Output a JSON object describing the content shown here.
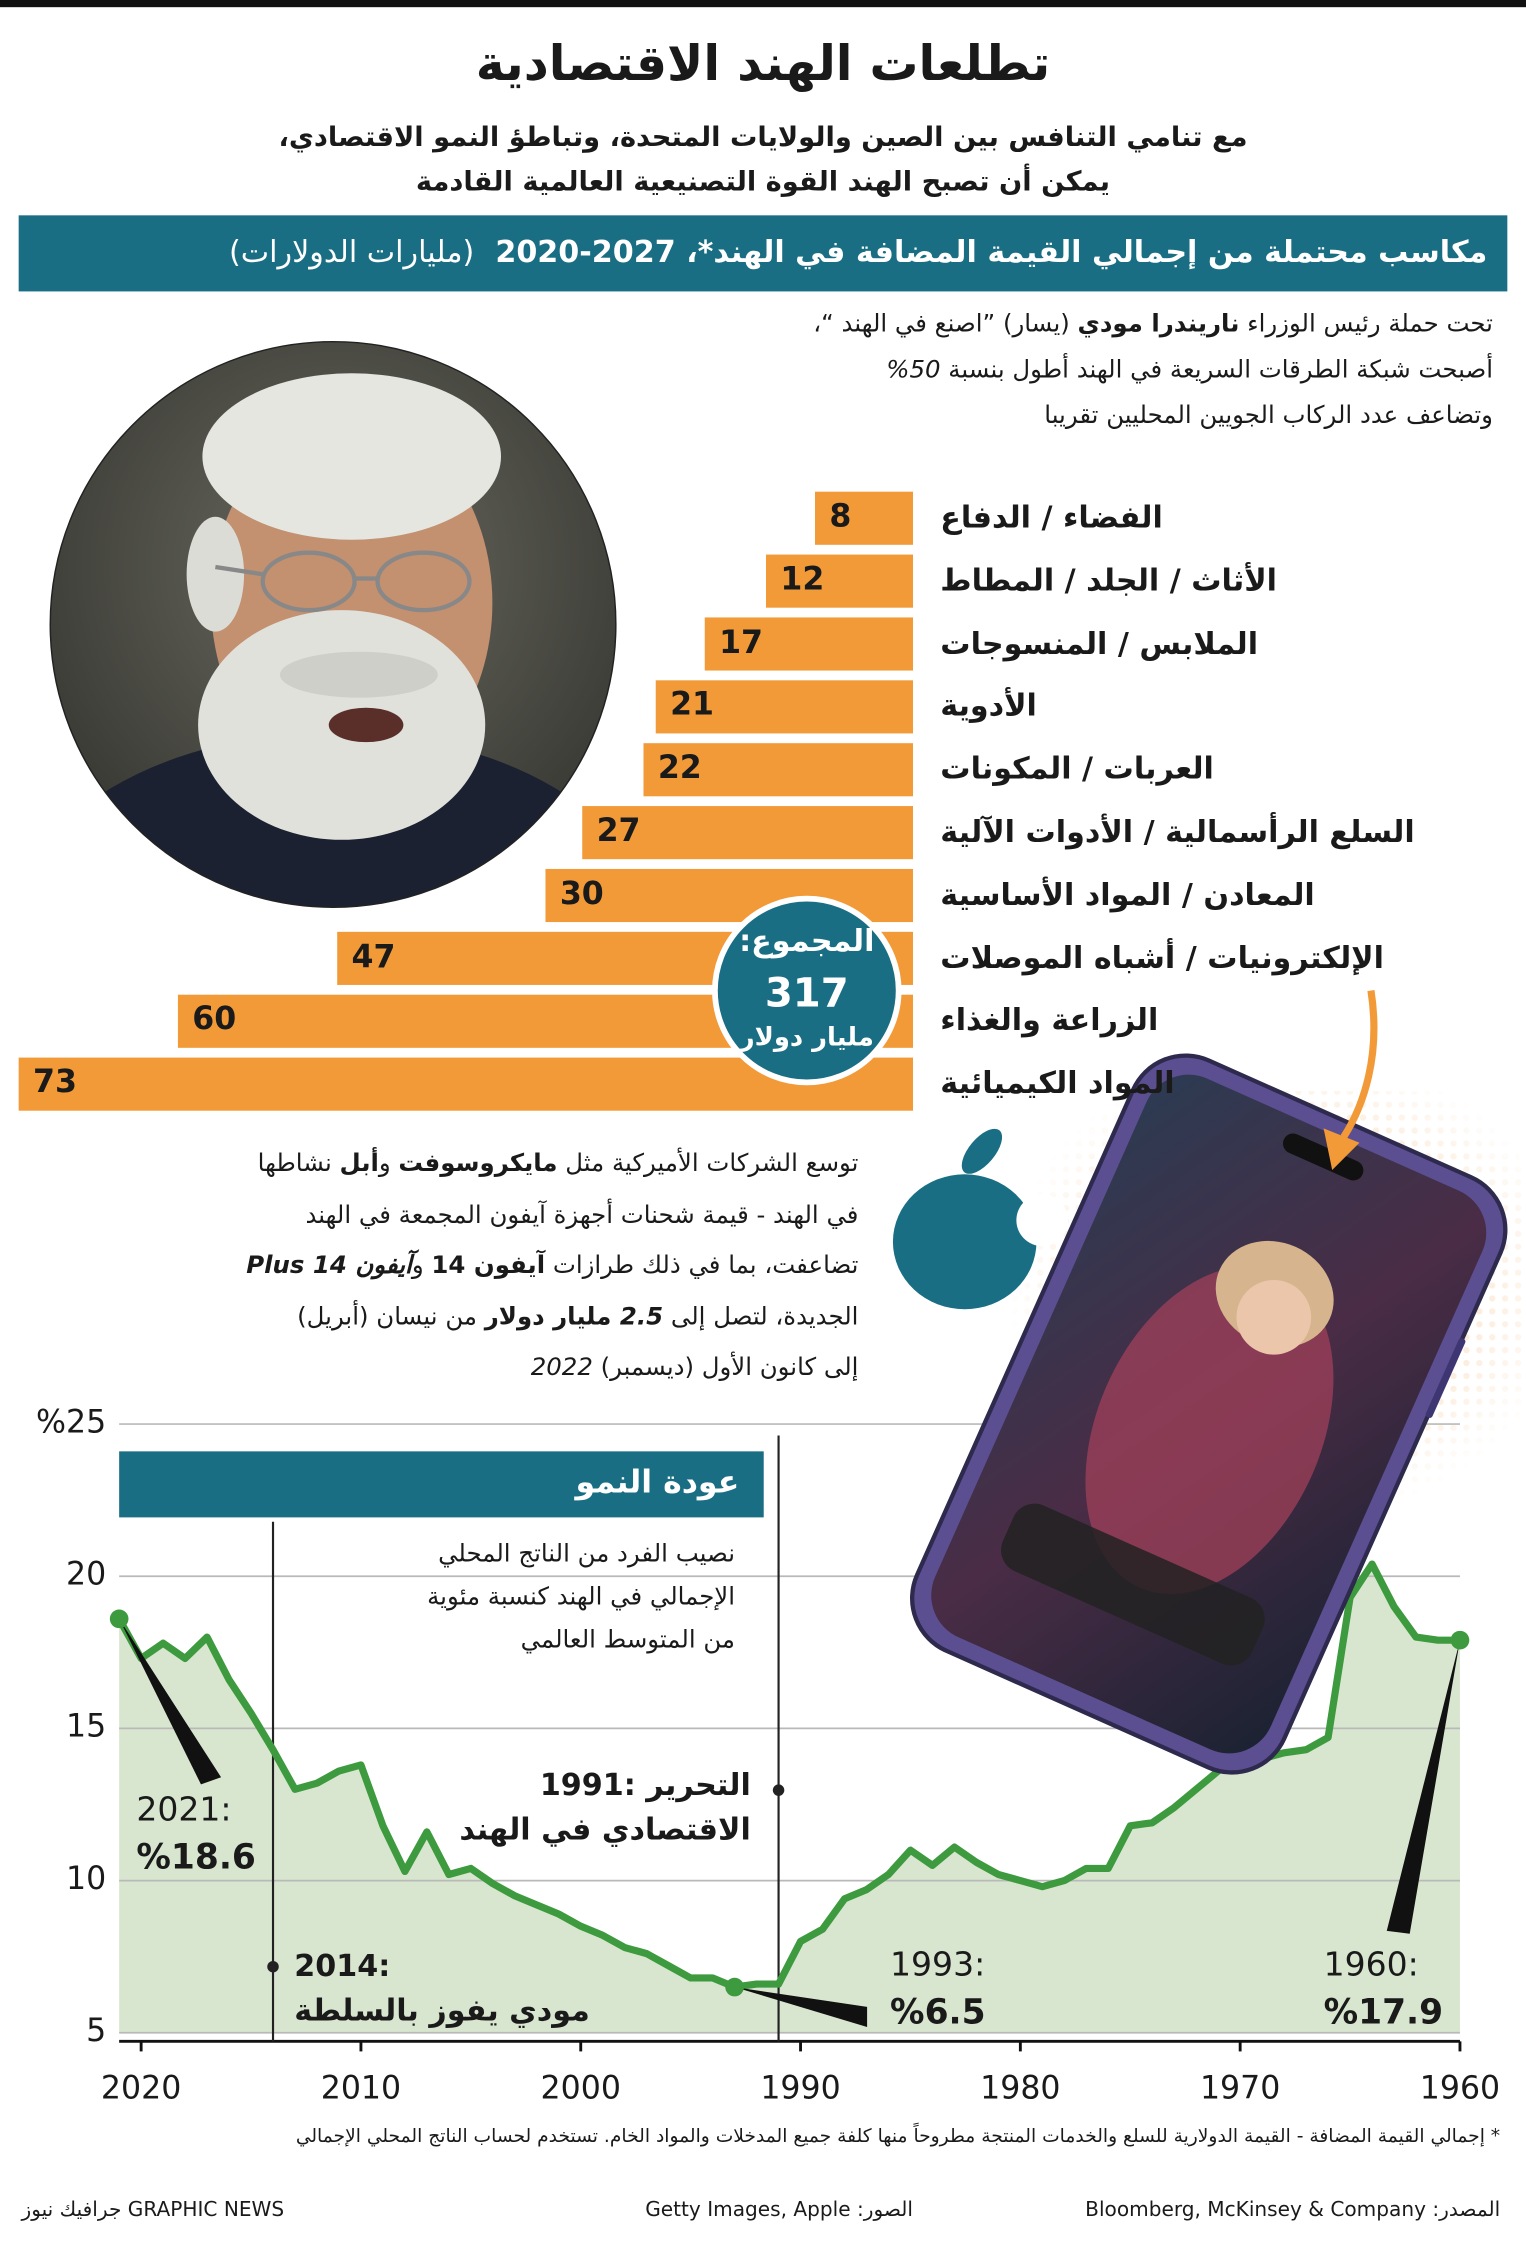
{
  "header": {
    "title": "تطلعات الهند الاقتصادية",
    "subtitle": [
      "مع تنامي التنافس بين الصين والولايات المتحدة، وتباطؤ النمو الاقتصادي،",
      "يمكن أن تصبح الهند القوة التصنيعية العالمية القادمة"
    ]
  },
  "chart_data": [
    {
      "type": "bar",
      "title": "مكاسب محتملة من إجمالي القيمة المضافة في الهند*، 2027-2020",
      "unit": "(مليارات الدولارات)",
      "categories": [
        "الفضاء / الدفاع",
        "الأثاث / الجلد / المطاط",
        "الملابس / المنسوجات",
        "الأدوية",
        "العربات / المكونات",
        "السلع الرأسمالية / الأدوات الآلية",
        "المعادن / المواد الأساسية",
        "الإلكترونيات / أشباه الموصلات",
        "الزراعة والغذاء",
        "المواد الكيميائية"
      ],
      "values": [
        8,
        12,
        17,
        21,
        22,
        27,
        30,
        47,
        60,
        73
      ],
      "color": "#f29a38",
      "total": {
        "label": "المجموع:",
        "value": 317,
        "unit": "مليار دولار"
      }
    },
    {
      "type": "line",
      "title": "عودة النمو",
      "description": [
        "نصيب الفرد من الناتج المحلي",
        "الإجمالي في الهند كنسبة مئوية",
        "من المتوسط العالمي"
      ],
      "x": [
        1960,
        1961,
        1962,
        1963,
        1964,
        1965,
        1966,
        1967,
        1968,
        1969,
        1970,
        1971,
        1972,
        1973,
        1974,
        1975,
        1976,
        1977,
        1978,
        1979,
        1980,
        1981,
        1982,
        1983,
        1984,
        1985,
        1986,
        1987,
        1988,
        1989,
        1990,
        1991,
        1992,
        1993,
        1994,
        1995,
        1996,
        1997,
        1998,
        1999,
        2000,
        2001,
        2002,
        2003,
        2004,
        2005,
        2006,
        2007,
        2008,
        2009,
        2010,
        2011,
        2012,
        2013,
        2014,
        2015,
        2016,
        2017,
        2018,
        2019,
        2020,
        2021
      ],
      "values": [
        17.9,
        17.9,
        18.0,
        19.0,
        20.4,
        19.3,
        14.7,
        14.3,
        14.2,
        14.0,
        14.0,
        13.6,
        13.0,
        12.4,
        11.9,
        11.8,
        10.4,
        10.4,
        10.0,
        9.8,
        10.0,
        10.2,
        10.6,
        11.1,
        10.5,
        11.0,
        10.2,
        9.7,
        9.4,
        8.4,
        8.0,
        6.6,
        6.6,
        6.5,
        6.8,
        6.8,
        7.2,
        7.6,
        7.8,
        8.2,
        8.5,
        8.9,
        9.2,
        9.5,
        9.9,
        10.4,
        10.2,
        11.6,
        10.3,
        11.8,
        13.8,
        13.6,
        13.2,
        13.0,
        14.3,
        15.5,
        16.6,
        18.0,
        17.3,
        17.8,
        17.3,
        18.6
      ],
      "color": "#3d9a3e",
      "area_color": "#d8e6cf",
      "xlim": [
        2021,
        1960
      ],
      "xticks": [
        2020,
        2010,
        2000,
        1990,
        1980,
        1970,
        1960
      ],
      "ylim": [
        5,
        25
      ],
      "yticks": [
        5,
        10,
        15,
        20,
        {
          "value": 25,
          "label": "%25"
        }
      ],
      "grid": true,
      "annotations": [
        {
          "x": 2021,
          "year": "2021:",
          "label": "%18.6"
        },
        {
          "x": 1993,
          "year": "1993:",
          "label": "%6.5"
        },
        {
          "x": 1960,
          "year": "1960:",
          "label": "%17.9"
        }
      ],
      "events": [
        {
          "x": 1991,
          "lines": [
            "1991: التحرير",
            "الاقتصادي في الهند"
          ]
        },
        {
          "x": 2014,
          "lines": [
            "2014:",
            "مودي يفوز بالسلطة"
          ]
        }
      ]
    }
  ],
  "modi_text": [
    [
      {
        "text": "تحت حملة رئيس الوزراء "
      },
      {
        "text": "ناريندرا مودي",
        "bold": true
      },
      {
        "text": " (يسار) ”اصنع في الهند “،"
      }
    ],
    [
      {
        "text": "أصبحت شبكة الطرقات السريعة في الهند أطول بنسبة "
      },
      {
        "text": "50%",
        "italic": true
      }
    ],
    [
      {
        "text": "وتضاعف عدد الركاب الجويين المحليين تقريبا"
      }
    ]
  ],
  "apple_text": [
    [
      {
        "text": "توسع الشركات الأميركية مثل "
      },
      {
        "text": "مايكروسوفت",
        "bold": true
      },
      {
        "text": " و"
      },
      {
        "text": "أبل",
        "bold": true
      },
      {
        "text": " نشاطها"
      }
    ],
    [
      {
        "text": "في الهند - قيمة شحنات أجهزة آيفون المجمعة في الهند"
      }
    ],
    [
      {
        "text": "تضاعفت، بما في ذلك طرازات "
      },
      {
        "text": "آيفون 14",
        "bold": true
      },
      {
        "text": " و"
      },
      {
        "text": "آيفون Plus 14",
        "bold": true,
        "italic": true
      }
    ],
    [
      {
        "text": "الجديدة، لتصل إلى "
      },
      {
        "text": "2.5",
        "bold": true,
        "italic": true
      },
      {
        "text": " مليار دولار",
        "bold": true
      },
      {
        "text": " من نيسان (أبريل)"
      }
    ],
    [
      {
        "text": "إلى كانون الأول (ديسمبر) "
      },
      {
        "text": "2022",
        "italic": true
      }
    ]
  ],
  "footnote": "* إجمالي القيمة المضافة - القيمة الدولارية للسلع والخدمات المنتجة مطروحاً منها كلفة جميع المدخلات والمواد الخام. تستخدم لحساب الناتج المحلي الإجمالي",
  "credits": {
    "source": "المصدر: Bloomberg, McKinsey & Company",
    "photos": "الصور: Getty Images, Apple",
    "publisher": "GRAPHIC NEWS جرافيك نيوز"
  }
}
